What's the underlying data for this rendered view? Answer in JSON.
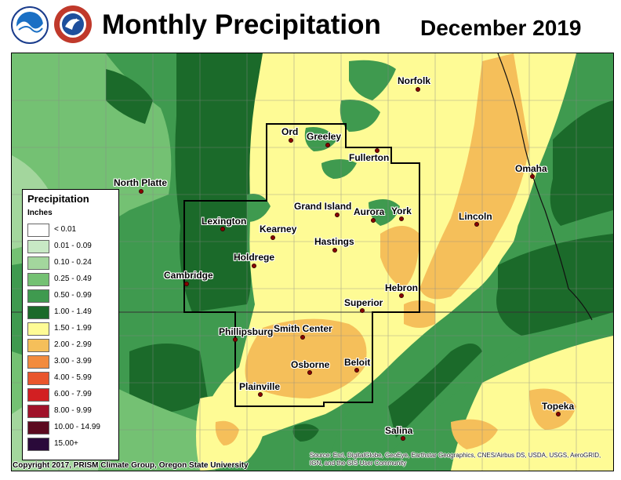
{
  "header": {
    "title": "Monthly Precipitation",
    "period": "December 2019",
    "logos": [
      "noaa-logo",
      "national-weather-service-logo"
    ]
  },
  "legend": {
    "title": "Precipitation",
    "units": "Inches",
    "classes": [
      {
        "label": "< 0.01",
        "color": "#ffffff"
      },
      {
        "label": "0.01 - 0.09",
        "color": "#c8e9c5"
      },
      {
        "label": "0.10 - 0.24",
        "color": "#a3d69d"
      },
      {
        "label": "0.25 - 0.49",
        "color": "#74c173"
      },
      {
        "label": "0.50 - 0.99",
        "color": "#3f9a4f"
      },
      {
        "label": "1.00 - 1.49",
        "color": "#1b6a2a"
      },
      {
        "label": "1.50 - 1.99",
        "color": "#fefb95"
      },
      {
        "label": "2.00 - 2.99",
        "color": "#f5bf5a"
      },
      {
        "label": "3.00 - 3.99",
        "color": "#f28b3e"
      },
      {
        "label": "4.00 - 5.99",
        "color": "#e9562d"
      },
      {
        "label": "6.00 - 7.99",
        "color": "#d21f22"
      },
      {
        "label": "8.00 - 9.99",
        "color": "#a0122a"
      },
      {
        "label": "10.00 - 14.99",
        "color": "#5c0a1f"
      },
      {
        "label": "15.00+",
        "color": "#2a0a3a"
      }
    ]
  },
  "cities": [
    {
      "name": "Norfolk"
    },
    {
      "name": "Ord"
    },
    {
      "name": "Greeley"
    },
    {
      "name": "Fullerton"
    },
    {
      "name": "North Platte"
    },
    {
      "name": "Omaha"
    },
    {
      "name": "Grand Island"
    },
    {
      "name": "Aurora"
    },
    {
      "name": "York"
    },
    {
      "name": "Lexington"
    },
    {
      "name": "Lincoln"
    },
    {
      "name": "Kearney"
    },
    {
      "name": "Hastings"
    },
    {
      "name": "Holdrege"
    },
    {
      "name": "Cambridge"
    },
    {
      "name": "Hebron"
    },
    {
      "name": "Superior"
    },
    {
      "name": "Phillipsburg"
    },
    {
      "name": "Smith Center"
    },
    {
      "name": "Osborne"
    },
    {
      "name": "Beloit"
    },
    {
      "name": "Plainville"
    },
    {
      "name": "Topeka"
    },
    {
      "name": "Salina"
    }
  ],
  "footer": {
    "copyright": "Copyright 2017, PRISM Climate Group, Oregon State University",
    "source": "Source: Esri, DigitalGlobe, GeoEye, Earthstar Geographics, CNES/Airbus DS, USDA, USGS, AeroGRID, IGN, and the GIS User Community"
  }
}
